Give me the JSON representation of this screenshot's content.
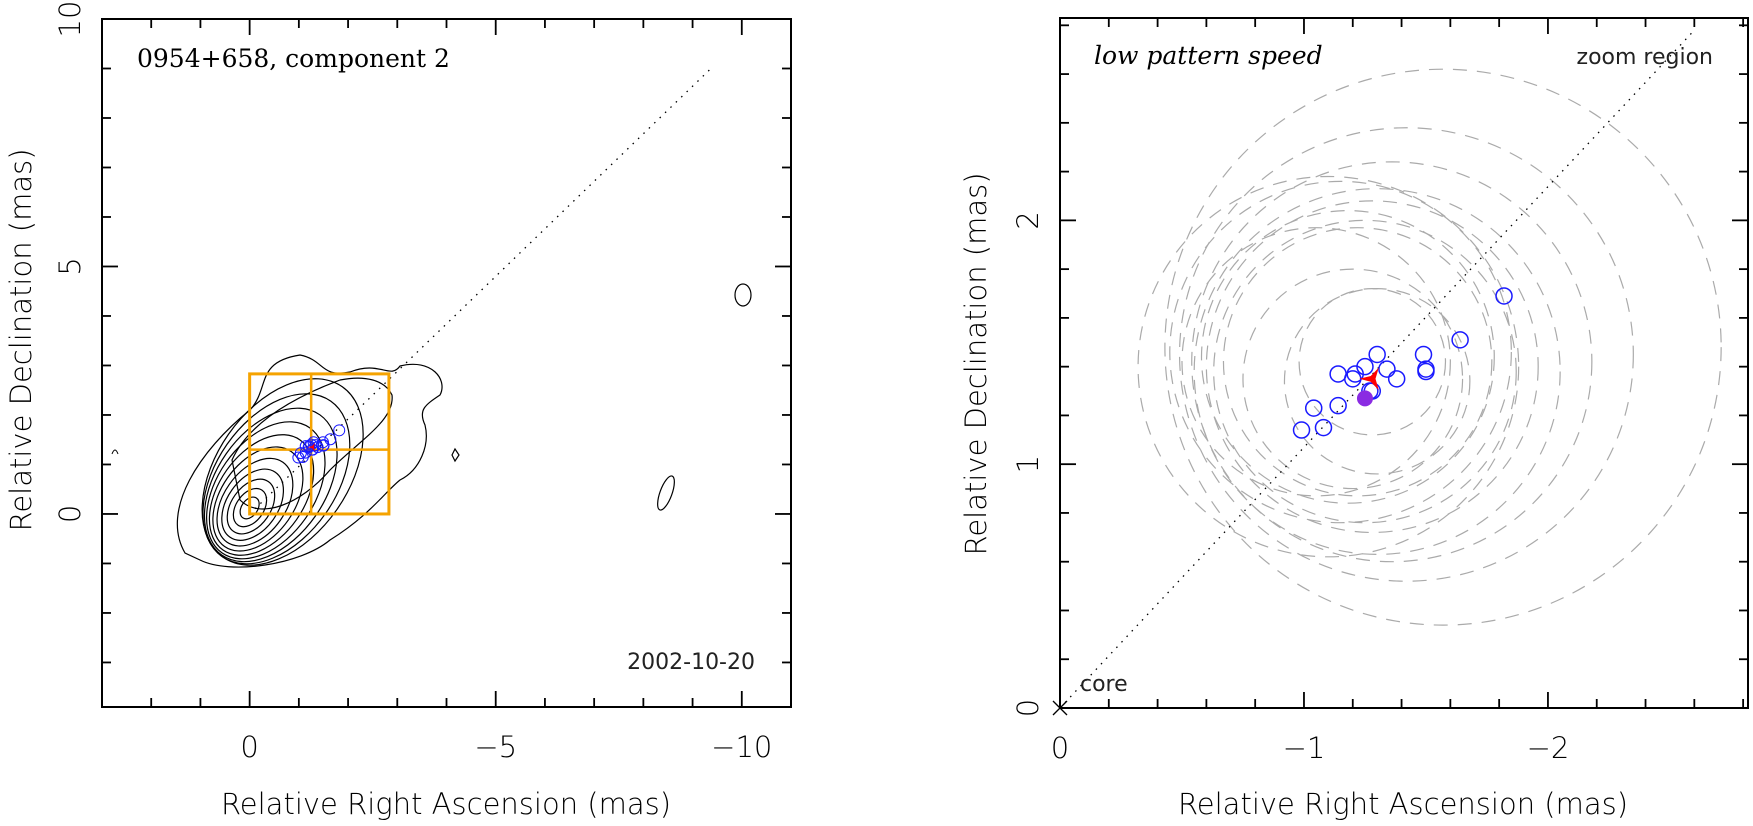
{
  "chart_data": [
    {
      "type": "scatter",
      "title": "0954+658, component 2",
      "date_label": "2002-10-20",
      "xlabel": "Relative Right Ascension (mas)",
      "ylabel": "Relative Declination (mas)",
      "xlim": [
        3,
        -11
      ],
      "ylim": [
        -3.9,
        10
      ],
      "xticks": [
        0,
        -5,
        -10
      ],
      "xtick_labels": [
        "0",
        "−5",
        "−10"
      ],
      "yticks": [
        0,
        5,
        10
      ],
      "ytick_labels": [
        "0",
        "5",
        "10"
      ],
      "minor_step": 1,
      "grid": false,
      "colors": {
        "contour": "#000000",
        "box": "#f5a300",
        "circle": "#1a1aff",
        "star": "#ff0000"
      },
      "zoom_box": {
        "x": [
          0,
          -2.83
        ],
        "y": [
          0,
          2.83
        ],
        "cross_x": -1.25,
        "cross_y": 1.3
      },
      "jet_axis_angle_deg": 44,
      "contour_peak": {
        "x": 0,
        "y": 0
      },
      "series": [
        {
          "name": "component positions",
          "marker": "open-circle",
          "points": [
            [
              -0.99,
              1.14
            ],
            [
              -1.08,
              1.15
            ],
            [
              -1.04,
              1.23
            ],
            [
              -1.14,
              1.24
            ],
            [
              -1.14,
              1.37
            ],
            [
              -1.2,
              1.35
            ],
            [
              -1.21,
              1.37
            ],
            [
              -1.25,
              1.4
            ],
            [
              -1.3,
              1.45
            ],
            [
              -1.34,
              1.39
            ],
            [
              -1.38,
              1.35
            ],
            [
              -1.28,
              1.3
            ],
            [
              -1.27,
              1.3
            ],
            [
              -1.49,
              1.45
            ],
            [
              -1.5,
              1.39
            ],
            [
              -1.5,
              1.38
            ],
            [
              -1.64,
              1.51
            ],
            [
              -1.82,
              1.69
            ]
          ]
        }
      ]
    },
    {
      "type": "scatter",
      "title": "low pattern speed",
      "corner_label": "zoom region",
      "origin_label": "core",
      "xlabel": "Relative Right Ascension (mas)",
      "ylabel": "Relative Declination (mas)",
      "xlim": [
        0,
        -2.82
      ],
      "ylim": [
        0,
        2.83
      ],
      "xticks": [
        0,
        -1,
        -2
      ],
      "xtick_labels": [
        "0",
        "−1",
        "−2"
      ],
      "yticks": [
        0,
        1,
        2
      ],
      "ytick_labels": [
        "0",
        "1",
        "2"
      ],
      "minor_step": 0.2,
      "grid": false,
      "colors": {
        "circle": "#1a1aff",
        "star": "#ff0000",
        "filled": "#8a2be2",
        "dashed": "#aaaaaa"
      },
      "series": [
        {
          "name": "component positions",
          "marker": "open-circle",
          "points": [
            [
              -0.99,
              1.14
            ],
            [
              -1.08,
              1.15
            ],
            [
              -1.04,
              1.23
            ],
            [
              -1.14,
              1.24
            ],
            [
              -1.14,
              1.37
            ],
            [
              -1.2,
              1.35
            ],
            [
              -1.21,
              1.37
            ],
            [
              -1.25,
              1.4
            ],
            [
              -1.3,
              1.45
            ],
            [
              -1.34,
              1.39
            ],
            [
              -1.38,
              1.35
            ],
            [
              -1.28,
              1.3
            ],
            [
              -1.27,
              1.3
            ],
            [
              -1.49,
              1.45
            ],
            [
              -1.5,
              1.39
            ],
            [
              -1.5,
              1.38
            ],
            [
              -1.64,
              1.51
            ],
            [
              -1.82,
              1.69
            ]
          ]
        },
        {
          "name": "mean position",
          "marker": "filled-circle",
          "points": [
            [
              -1.25,
              1.27
            ]
          ]
        },
        {
          "name": "pattern center",
          "marker": "star",
          "points": [
            [
              -1.28,
              1.35
            ]
          ]
        },
        {
          "name": "uncertainty circles",
          "marker": "dashed-circle",
          "circles": [
            [
              -1.57,
              1.48,
              1.14
            ],
            [
              -1.42,
              1.45,
              0.93
            ],
            [
              -1.36,
              1.42,
              0.82
            ],
            [
              -1.3,
              1.38,
              0.75
            ],
            [
              -1.28,
              1.4,
              0.68
            ],
            [
              -1.25,
              1.38,
              0.62
            ],
            [
              -1.22,
              1.42,
              0.55
            ],
            [
              -1.18,
              1.44,
              0.6
            ],
            [
              -1.15,
              1.46,
              0.7
            ],
            [
              -1.1,
              1.4,
              0.78
            ],
            [
              -1.05,
              1.42,
              0.55
            ],
            [
              -1.2,
              1.35,
              0.45
            ],
            [
              -1.3,
              1.34,
              0.38
            ],
            [
              -1.28,
              1.42,
              0.3
            ]
          ]
        }
      ]
    }
  ]
}
